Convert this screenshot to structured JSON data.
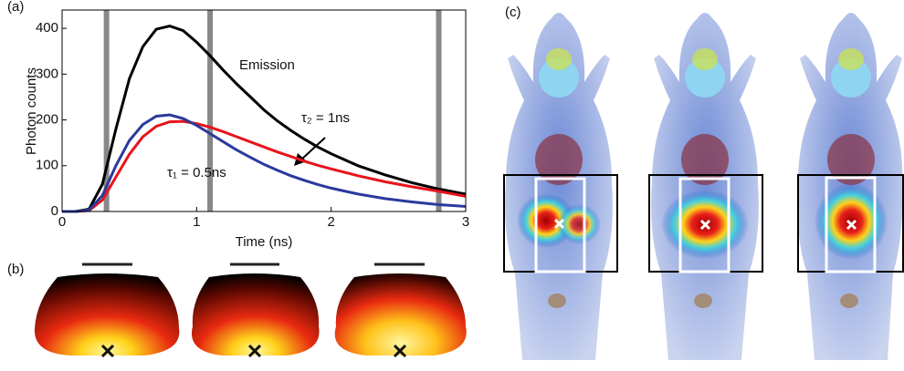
{
  "panel_labels": [
    "(a)",
    "(b)",
    "(c)"
  ],
  "chart_data": {
    "type": "line",
    "x_label": "Time (ns)",
    "y_label": "Photon counts",
    "x": [
      0,
      0.1,
      0.2,
      0.3,
      0.4,
      0.5,
      0.6,
      0.7,
      0.8,
      0.9,
      1.0,
      1.1,
      1.2,
      1.3,
      1.4,
      1.5,
      1.6,
      1.7,
      1.8,
      1.9,
      2.0,
      2.2,
      2.4,
      2.6,
      2.8,
      3.0
    ],
    "series": [
      {
        "name": "Emission",
        "color": "#000000",
        "values": [
          0,
          0,
          5,
          60,
          180,
          290,
          360,
          398,
          405,
          395,
          370,
          340,
          308,
          278,
          250,
          222,
          198,
          177,
          158,
          141,
          126,
          100,
          80,
          63,
          49,
          38
        ]
      },
      {
        "name": "τ₂ = 1ns",
        "color": "#e8141c",
        "values": [
          0,
          0,
          2,
          25,
          75,
          125,
          163,
          186,
          196,
          197,
          192,
          184,
          174,
          163,
          152,
          141,
          130,
          120,
          110,
          101,
          93,
          78,
          65,
          54,
          44,
          33
        ]
      },
      {
        "name": "τ₁ = 0.5ns",
        "color": "#2a3a9c",
        "values": [
          0,
          0,
          3,
          35,
          100,
          155,
          190,
          208,
          211,
          203,
          188,
          170,
          152,
          134,
          118,
          103,
          90,
          78,
          68,
          59,
          51,
          38,
          28,
          21,
          15,
          11
        ]
      }
    ],
    "gates": [
      0.33,
      1.1,
      2.8
    ],
    "gate_color": "#888888",
    "xlim": [
      0,
      3
    ],
    "ylim": [
      0,
      440
    ],
    "xticks": [
      0,
      1,
      2,
      3
    ],
    "yticks": [
      0,
      100,
      200,
      300,
      400
    ]
  }
}
